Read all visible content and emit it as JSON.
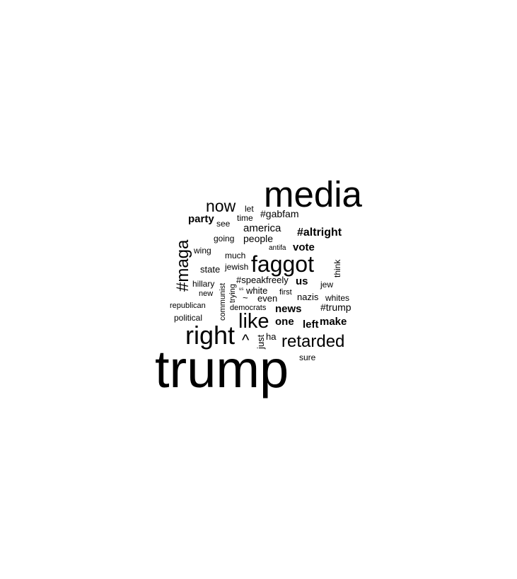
{
  "wordcloud": {
    "text_color": "#000000",
    "background": "#ffffff",
    "words": [
      {
        "id": "trump",
        "text": "trump"
      },
      {
        "id": "media",
        "text": "media"
      },
      {
        "id": "faggot",
        "text": "faggot"
      },
      {
        "id": "right",
        "text": "right"
      },
      {
        "id": "like",
        "text": "like"
      },
      {
        "id": "maga",
        "text": "#maga"
      },
      {
        "id": "retarded",
        "text": "retarded"
      },
      {
        "id": "now",
        "text": "now"
      },
      {
        "id": "altright",
        "text": "#altright"
      },
      {
        "id": "party",
        "text": "party"
      },
      {
        "id": "gabfam",
        "text": "#gabfam"
      },
      {
        "id": "america",
        "text": "america"
      },
      {
        "id": "people",
        "text": "people"
      },
      {
        "id": "vote",
        "text": "vote"
      },
      {
        "id": "us",
        "text": "us"
      },
      {
        "id": "news",
        "text": "news"
      },
      {
        "id": "one",
        "text": "one"
      },
      {
        "id": "left",
        "text": "left"
      },
      {
        "id": "make",
        "text": "make"
      },
      {
        "id": "caret",
        "text": "^"
      },
      {
        "id": "trump-hashtag",
        "text": "#trump"
      },
      {
        "id": "speakfreely",
        "text": "#speakfreely"
      },
      {
        "id": "white",
        "text": "white"
      },
      {
        "id": "nazis",
        "text": "nazis"
      },
      {
        "id": "even",
        "text": "even"
      },
      {
        "id": "state",
        "text": "state"
      },
      {
        "id": "hillary",
        "text": "hillary"
      },
      {
        "id": "political",
        "text": "political"
      },
      {
        "id": "just",
        "text": "just"
      },
      {
        "id": "ha",
        "text": "ha"
      },
      {
        "id": "sure",
        "text": "sure"
      },
      {
        "id": "going",
        "text": "going"
      },
      {
        "id": "see",
        "text": "see"
      },
      {
        "id": "time",
        "text": "time"
      },
      {
        "id": "let",
        "text": "let"
      },
      {
        "id": "wing",
        "text": "wing"
      },
      {
        "id": "much",
        "text": "much"
      },
      {
        "id": "jewish",
        "text": "jewish"
      },
      {
        "id": "antifa",
        "text": "antifa"
      },
      {
        "id": "think",
        "text": "think"
      },
      {
        "id": "jew",
        "text": "jew"
      },
      {
        "id": "whites",
        "text": "whites"
      },
      {
        "id": "first",
        "text": "first"
      },
      {
        "id": "new",
        "text": "new"
      },
      {
        "id": "republican",
        "text": "republican"
      },
      {
        "id": "democrats",
        "text": "democrats"
      },
      {
        "id": "communist",
        "text": "communist"
      },
      {
        "id": "trying",
        "text": "trying"
      },
      {
        "id": "tilde",
        "text": "~"
      },
      {
        "id": "us-small",
        "text": "us"
      }
    ]
  }
}
